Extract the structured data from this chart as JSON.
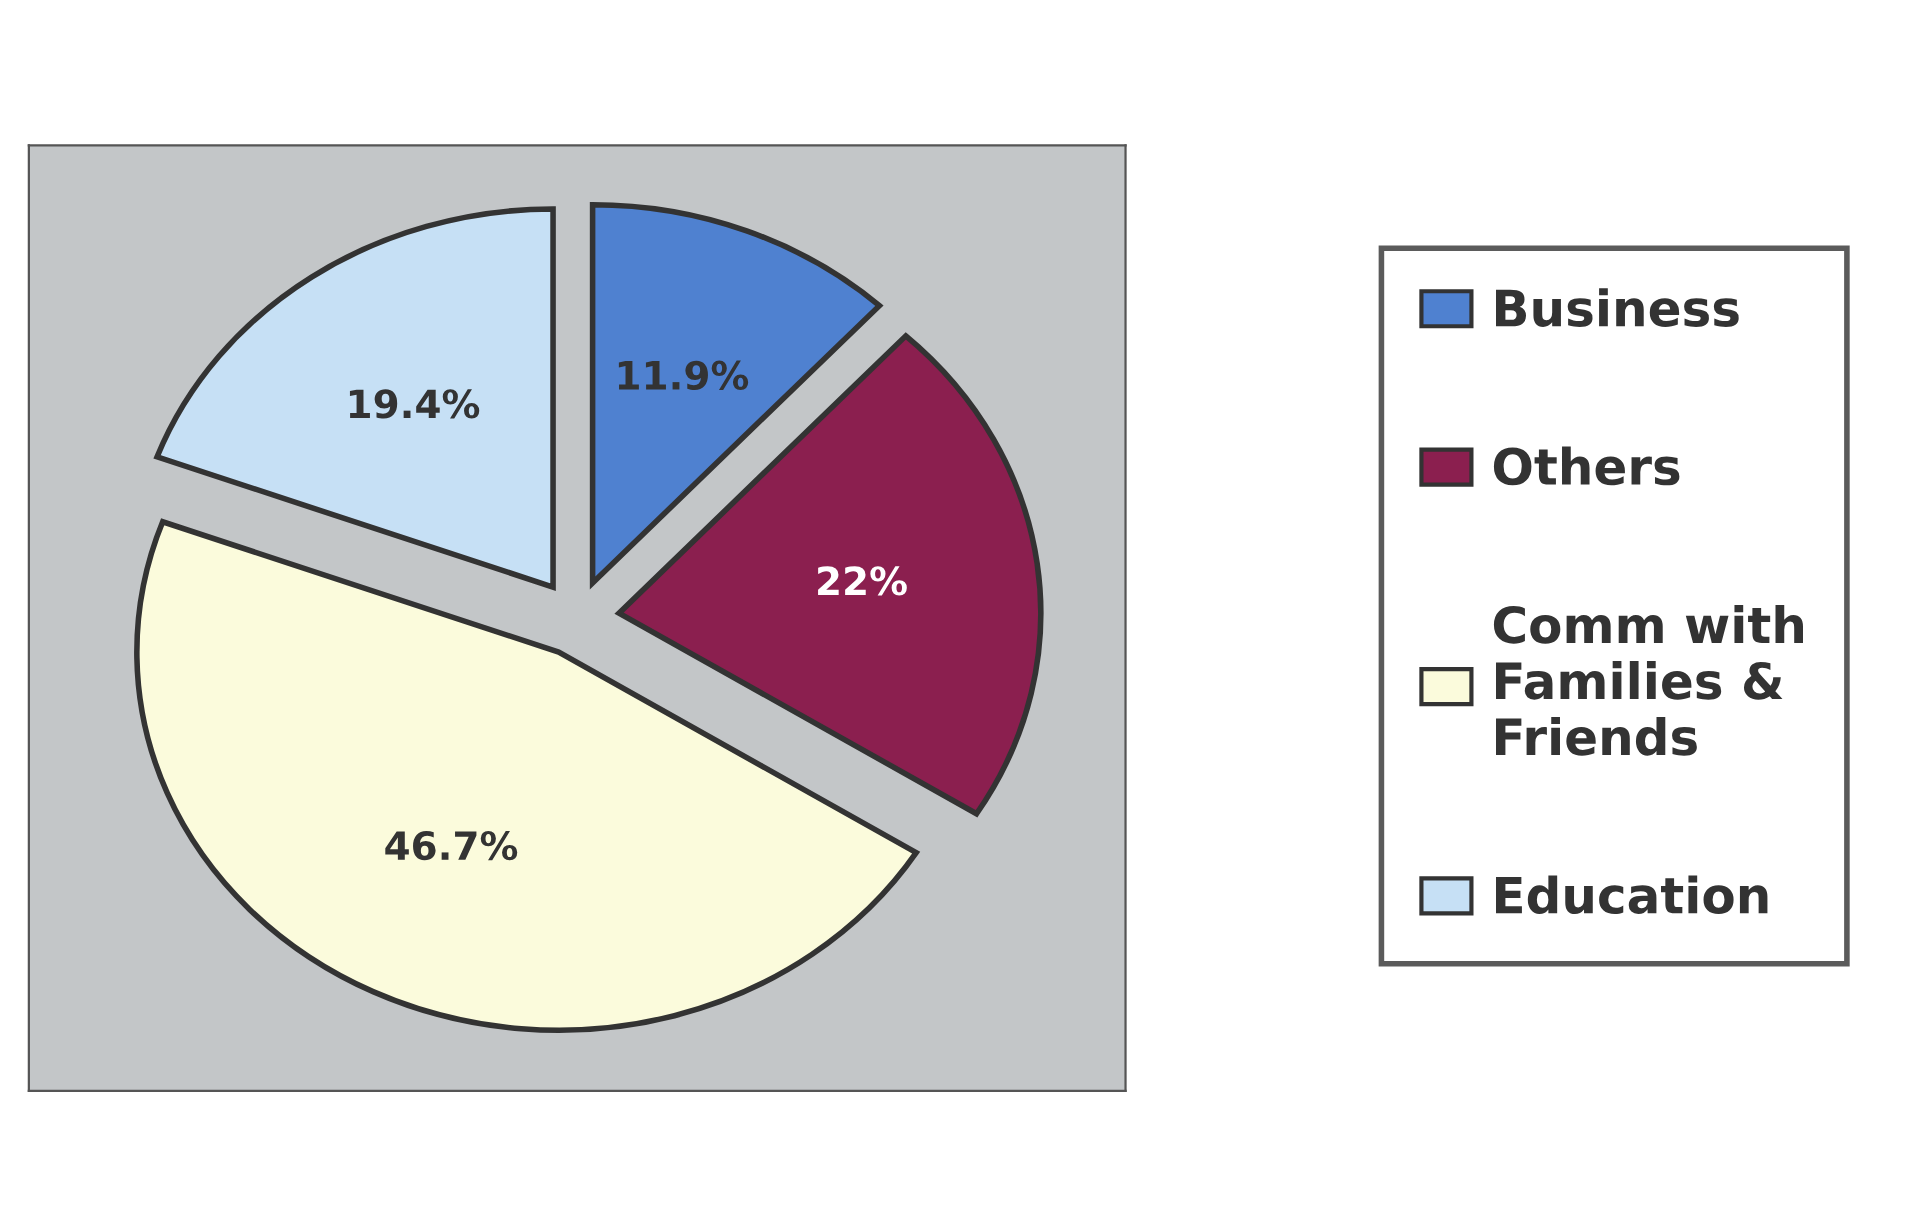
{
  "chart_data": {
    "type": "pie",
    "categories": [
      "Business",
      "Others",
      "Comm with Families & Friends",
      "Education"
    ],
    "values": [
      11.9,
      22,
      46.7,
      19.4
    ],
    "value_labels": [
      "11.9%",
      "22%",
      "46.7%",
      "19.4%"
    ],
    "colors": [
      "#4f81d0",
      "#8b1f4f",
      "#fbfbdc",
      "#c6e0f5"
    ],
    "legend": "right"
  }
}
